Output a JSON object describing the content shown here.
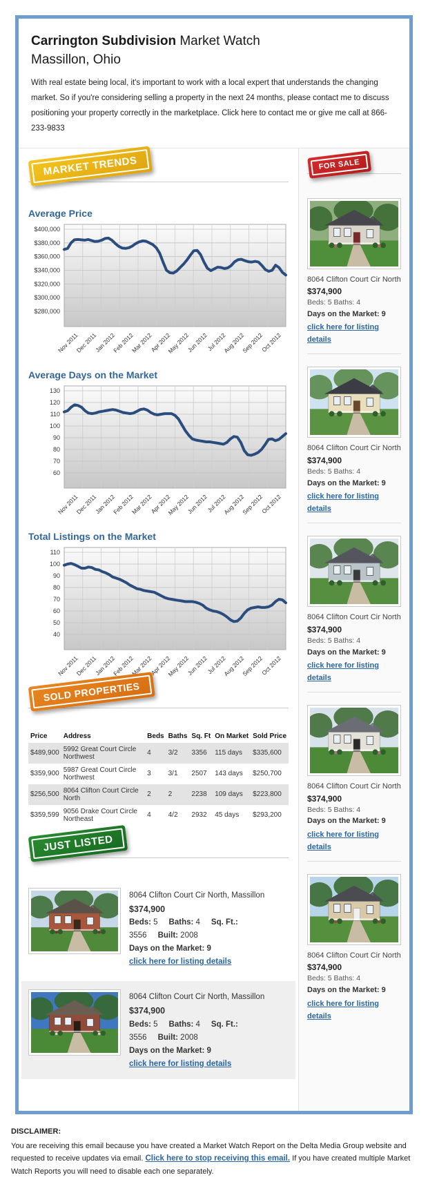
{
  "frame_color": "#6f9dcf",
  "header": {
    "title_bold": "Carrington Subdivision",
    "title_suffix": " Market Watch",
    "city": "Massillon, Ohio",
    "intro": "With real estate being local, it's important to work with a local expert that understands the changing market. So if you're considering selling a property in the next 24 months, please contact me to discuss positioning your property correctly in the marketplace. Click here to contact me or give me call at 866-233-9833"
  },
  "badges": {
    "market_trends": "MARKET TRENDS",
    "for_sale": "FOR SALE",
    "sold_properties": "SOLD PROPERTIES",
    "just_listed": "JUST LISTED"
  },
  "chart_data": [
    {
      "type": "line",
      "title": "Average Price",
      "categories": [
        "Nov 2011",
        "Dec 2011",
        "Jan 2012",
        "Feb 2012",
        "Mar 2012",
        "Apr 2012",
        "May 2012",
        "Jun 2012",
        "Jul 2012",
        "Aug 2012",
        "Sep 2012",
        "Oct 2012"
      ],
      "values": [
        370500,
        372000,
        380000,
        384500,
        385000,
        384500,
        384000,
        385000,
        383500,
        382000,
        382500,
        384000,
        386500,
        387000,
        384000,
        379000,
        375000,
        372500,
        372000,
        373000,
        375500,
        379000,
        381500,
        383000,
        382500,
        380000,
        377500,
        373000,
        365000,
        352000,
        340000,
        336500,
        336000,
        339000,
        344000,
        349000,
        355000,
        362000,
        368500,
        369000,
        363000,
        352000,
        343000,
        339500,
        342000,
        344500,
        344000,
        342500,
        343500,
        347000,
        352500,
        355500,
        356000,
        354000,
        352500,
        352000,
        353000,
        352000,
        347000,
        341000,
        338500,
        340000,
        347500,
        344000,
        337000,
        333000
      ],
      "ylim": [
        280000,
        400000
      ],
      "ytick_step": 20000,
      "ytick_prefix": "$",
      "grid": true,
      "line_color": "#2b4d7e"
    },
    {
      "type": "line",
      "title": "Average Days on the Market",
      "categories": [
        "Nov 2011",
        "Dec 2011",
        "Jan 2012",
        "Feb 2012",
        "Mar 2012",
        "Apr 2012",
        "May 2012",
        "Jun 2012",
        "Jul 2012",
        "Aug 2012",
        "Sep 2012",
        "Oct 2012"
      ],
      "values": [
        112,
        113,
        116,
        118,
        117.5,
        116,
        113,
        111,
        110.5,
        111,
        112,
        112.5,
        113,
        113.5,
        114,
        113.5,
        112.5,
        111.5,
        111,
        110.5,
        111,
        112.5,
        114,
        114.5,
        113.5,
        111.5,
        110,
        109.5,
        110,
        110.5,
        110.5,
        110.5,
        109,
        106,
        101,
        96,
        92,
        89,
        88,
        87.5,
        87,
        86.5,
        86.5,
        86,
        85.5,
        85,
        84.5,
        86,
        89,
        91,
        90.5,
        86,
        79,
        75.5,
        75,
        76,
        77.5,
        80,
        84,
        88.5,
        89,
        87.5,
        88.5,
        91,
        93.5
      ],
      "ylim": [
        60,
        130
      ],
      "ytick_step": 10,
      "ytick_prefix": "",
      "grid": true,
      "line_color": "#2b4d7e"
    },
    {
      "type": "line",
      "title": "Total Listings on the Market",
      "categories": [
        "Nov 2011",
        "Dec 2011",
        "Jan 2012",
        "Feb 2012",
        "Mar 2012",
        "Apr 2012",
        "May 2012",
        "Jun 2012",
        "Jul 2012",
        "Aug 2012",
        "Sep 2012",
        "Oct 2012"
      ],
      "values": [
        99,
        100,
        100.5,
        99.5,
        98,
        96.5,
        96.5,
        97.5,
        97,
        95.5,
        95,
        93.5,
        92.5,
        91,
        89,
        88,
        87,
        85.5,
        84,
        82,
        80.5,
        79,
        78.5,
        77.5,
        77,
        76.5,
        76,
        74.5,
        73,
        71.5,
        70.5,
        70,
        69.5,
        69,
        68.5,
        68,
        68,
        68,
        67.5,
        66.5,
        65,
        62.5,
        61,
        60,
        59.5,
        58.5,
        57,
        55,
        52.5,
        51,
        51.5,
        54,
        58,
        61,
        62.5,
        63,
        63.5,
        63,
        63,
        63.5,
        65,
        68,
        70,
        69.5,
        67
      ],
      "ylim": [
        40,
        110
      ],
      "ytick_step": 10,
      "ytick_prefix": "",
      "grid": true,
      "line_color": "#2b4d7e"
    }
  ],
  "sold": {
    "headers": [
      "Price",
      "Address",
      "Beds",
      "Baths",
      "Sq. Ft",
      "On Market",
      "Sold Price"
    ],
    "rows": [
      [
        "$489,900",
        "5992 Great Court Circle Northwest",
        "4",
        "3/2",
        "3356",
        "115 days",
        "$335,600"
      ],
      [
        "$359,900",
        "5987 Great Court Circle Northwest",
        "3",
        "3/1",
        "2507",
        "143 days",
        "$250,700"
      ],
      [
        "$256,500",
        "8064 Clifton Court Circle North",
        "2",
        "2",
        "2238",
        "109 days",
        "$223,800"
      ],
      [
        "$359,599",
        "9056 Drake Court Circle Northeast",
        "4",
        "4/2",
        "2932",
        "45 days",
        "$293,200"
      ]
    ]
  },
  "for_sale": {
    "items": [
      {
        "address": "8064 Clifton Court Cir North",
        "price": "$374,900",
        "beds_baths": "Beds: 5 Baths: 4",
        "days_label": "Days on the Market:",
        "days_value": "9",
        "link": "click here for listing details",
        "photo_palette": {
          "sky": "#8fae7e",
          "trees": "#3d6a33",
          "lawn": "#4f8f3a",
          "wall": "#d9d4c9",
          "roof": "#46464c",
          "door": "#7a2a2a",
          "accent": "#c85a6e"
        }
      },
      {
        "address": "8064 Clifton Court Cir North",
        "price": "$374,900",
        "beds_baths": "Beds: 5 Baths: 4",
        "days_label": "Days on the Market:",
        "days_value": "9",
        "link": "click here for listing details",
        "photo_palette": {
          "sky": "#cfe2ef",
          "trees": "#5a8a4a",
          "lawn": "#5a9442",
          "wall": "#e9dfbe",
          "roof": "#3c3c44",
          "door": "#6a4a2a",
          "accent": "#8aa86a"
        }
      },
      {
        "address": "8064 Clifton Court Cir North",
        "price": "$374,900",
        "beds_baths": "Beds: 5 Baths: 4",
        "days_label": "Days on the Market:",
        "days_value": "9",
        "link": "click here for listing details",
        "photo_palette": {
          "sky": "#dfe7ec",
          "trees": "#4a7a40",
          "lawn": "#568f40",
          "wall": "#b9c5c9",
          "roof": "#54555d",
          "door": "#3a3a3a",
          "accent": "#7a9a5a"
        }
      },
      {
        "address": "8064 Clifton Court Cir North",
        "price": "$374,900",
        "beds_baths": "Beds: 5 Baths: 4",
        "days_label": "Days on the Market:",
        "days_value": "9",
        "link": "click here for listing details",
        "photo_palette": {
          "sky": "#d8e2ea",
          "trees": "#426f38",
          "lawn": "#4c8a38",
          "wall": "#e4e1d9",
          "roof": "#6a6d74",
          "door": "#2a2a2a",
          "accent": "#b86a8a"
        }
      },
      {
        "address": "8064 Clifton Court Cir North",
        "price": "$374,900",
        "beds_baths": "Beds: 5 Baths: 4",
        "days_label": "Days on the Market:",
        "days_value": "9",
        "link": "click here for listing details",
        "photo_palette": {
          "sky": "#b8d4e8",
          "trees": "#3a6b34",
          "lawn": "#55903d",
          "wall": "#d9c9a9",
          "roof": "#4a4c52",
          "door": "#f0f0f0",
          "accent": "#9a4a3a"
        }
      }
    ]
  },
  "just_listed": {
    "items": [
      {
        "address": "8064 Clifton Court Cir North, Massillon",
        "price": "$374,900",
        "specs": [
          {
            "label": "Beds:",
            "value": "5"
          },
          {
            "label": "Baths:",
            "value": "4"
          },
          {
            "label": "Sq. Ft.:",
            "value": "3556"
          },
          {
            "label": "Built:",
            "value": "2008"
          }
        ],
        "days_label": "Days on the Market:",
        "days_value": "9",
        "link": "click here for listing details",
        "shaded": false,
        "photo_palette": {
          "sky": "#c6d8e8",
          "trees": "#3f7038",
          "lawn": "#4e8a3a",
          "wall": "#a8563c",
          "roof": "#5a5248",
          "door": "#3a2a1a",
          "accent": "#7a3030"
        }
      },
      {
        "address": "8064 Clifton Court Cir North, Massillon",
        "price": "$374,900",
        "specs": [
          {
            "label": "Beds:",
            "value": "5"
          },
          {
            "label": "Baths:",
            "value": "4"
          },
          {
            "label": "Sq. Ft.:",
            "value": "3556"
          },
          {
            "label": "Built:",
            "value": "2008"
          }
        ],
        "days_label": "Days on the Market:",
        "days_value": "9",
        "link": "click here for listing details",
        "shaded": true,
        "photo_palette": {
          "sky": "#3f78c0",
          "trees": "#35682e",
          "lawn": "#4a8a36",
          "wall": "#8f4c3a",
          "roof": "#6a5e50",
          "door": "#2a1e14",
          "accent": "#d8cfc0"
        }
      }
    ]
  },
  "disclaimer": {
    "heading": "DISCLAIMER:",
    "before": "You are receiving this email because you have created a Market Watch Report on the Delta Media Group website and requested to receive updates via email. ",
    "link": "Click here to stop receiving this email.",
    "after": " If you have created multiple Market Watch Reports you will need to disable each one separately."
  }
}
